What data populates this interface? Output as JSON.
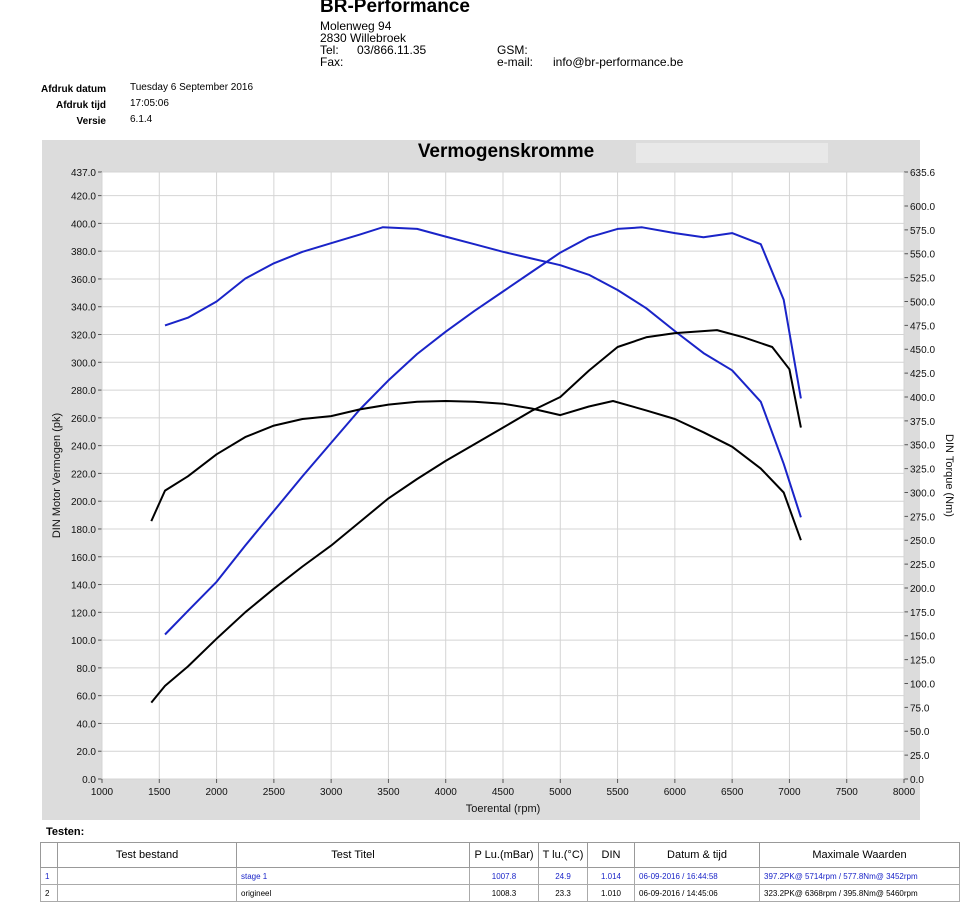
{
  "header": {
    "company": "BR-Performance",
    "street": "Molenweg 94",
    "city": "2830 Willebroek",
    "tel_label": "Tel:",
    "tel": "03/866.11.35",
    "fax_label": "Fax:",
    "gsm_label": "GSM:",
    "email_label": "e-mail:",
    "email": "info@br-performance.be"
  },
  "meta": {
    "date_label": "Afdruk datum",
    "date": "Tuesday 6 September 2016",
    "time_label": "Afdruk tijd",
    "time": "17:05:06",
    "version_label": "Versie",
    "version": "6.1.4"
  },
  "chart_data": {
    "type": "line",
    "title": "Vermogenskromme",
    "xlabel": "Toerental (rpm)",
    "ylabel": "DIN Motor Vermogen (pk)",
    "y2label": "DIN Torque (Nm)",
    "xlim": [
      1000,
      8000
    ],
    "ylim": [
      0,
      437
    ],
    "y2lim": [
      0,
      635.6
    ],
    "x_ticks": [
      1000,
      1500,
      2000,
      2500,
      3000,
      3500,
      4000,
      4500,
      5000,
      5500,
      6000,
      6500,
      7000,
      7500,
      8000
    ],
    "y_ticks": [
      "0.0",
      "20.0",
      "40.0",
      "60.0",
      "80.0",
      "100.0",
      "120.0",
      "140.0",
      "160.0",
      "180.0",
      "200.0",
      "220.0",
      "240.0",
      "260.0",
      "280.0",
      "300.0",
      "320.0",
      "340.0",
      "360.0",
      "380.0",
      "400.0",
      "420.0",
      "437.0"
    ],
    "y2_ticks": [
      "0.0",
      "25.0",
      "50.0",
      "75.0",
      "100.0",
      "125.0",
      "150.0",
      "175.0",
      "200.0",
      "225.0",
      "250.0",
      "275.0",
      "300.0",
      "325.0",
      "350.0",
      "375.0",
      "400.0",
      "425.0",
      "450.0",
      "475.0",
      "500.0",
      "525.0",
      "550.0",
      "575.0",
      "600.0",
      "635.6"
    ],
    "grid": true,
    "series": [
      {
        "color": "#1a24c8",
        "axis": "left",
        "x": [
          1550,
          1750,
          2000,
          2250,
          2500,
          2750,
          3000,
          3250,
          3500,
          3750,
          4000,
          4250,
          4500,
          4750,
          5000,
          5250,
          5500,
          5714,
          6000,
          6250,
          6500,
          6750,
          6950,
          7100
        ],
        "y": [
          104,
          121,
          142,
          168,
          193,
          218,
          242,
          266,
          287,
          306,
          322,
          337,
          351,
          365,
          379,
          390,
          396,
          397.2,
          393,
          390,
          393,
          385,
          345,
          274
        ]
      },
      {
        "color": "#1a24c8",
        "axis": "right",
        "x": [
          1550,
          1750,
          2000,
          2250,
          2500,
          2750,
          3000,
          3250,
          3452,
          3750,
          4000,
          4250,
          4500,
          4750,
          5000,
          5250,
          5500,
          5750,
          6000,
          6250,
          6500,
          6750,
          6950,
          7100
        ],
        "y": [
          475,
          483,
          500,
          524,
          540,
          552,
          561,
          570,
          577.8,
          576,
          568,
          560,
          552,
          545,
          538,
          528,
          512,
          493,
          469,
          446,
          428,
          395,
          330,
          274
        ]
      },
      {
        "color": "#000000",
        "axis": "left",
        "x": [
          1430,
          1550,
          1750,
          2000,
          2250,
          2500,
          2750,
          3000,
          3250,
          3500,
          3750,
          4000,
          4250,
          4500,
          4750,
          5000,
          5250,
          5500,
          5750,
          6000,
          6368,
          6600,
          6850,
          7000,
          7100
        ],
        "y": [
          55,
          67,
          81,
          101,
          120,
          137,
          153,
          168,
          185,
          202,
          216,
          229,
          241,
          253,
          265,
          275,
          294,
          311,
          318,
          321,
          323.2,
          318,
          311,
          295,
          253
        ]
      },
      {
        "color": "#000000",
        "axis": "right",
        "x": [
          1430,
          1550,
          1750,
          2000,
          2250,
          2500,
          2750,
          3000,
          3250,
          3500,
          3750,
          4000,
          4250,
          4500,
          4750,
          5000,
          5250,
          5460,
          5750,
          6000,
          6250,
          6500,
          6750,
          6950,
          7100
        ],
        "y": [
          270,
          302,
          317,
          340,
          358,
          370,
          377,
          380,
          387,
          392,
          395,
          395.8,
          395,
          393,
          388,
          381,
          390,
          395.8,
          386,
          377,
          363,
          348,
          325,
          300,
          250
        ]
      }
    ]
  },
  "tests": {
    "section_label": "Testen:",
    "columns": [
      "Test bestand",
      "Test Titel",
      "P Lu.(mBar)",
      "T lu.(°C)",
      "DIN",
      "Datum & tijd",
      "Maximale Waarden"
    ],
    "rows": [
      {
        "nr": "1",
        "file": "",
        "title": "stage 1",
        "p": "1007.8",
        "t": "24.9",
        "din": "1.014",
        "datetime": "06-09-2016 / 16:44:58",
        "max": "397.2PK@ 5714rpm / 577.8Nm@ 3452rpm",
        "color": "#1a24c8"
      },
      {
        "nr": "2",
        "file": "",
        "title": "origineel",
        "p": "1008.3",
        "t": "23.3",
        "din": "1.010",
        "datetime": "06-09-2016 / 14:45:06",
        "max": "323.2PK@ 6368rpm / 395.8Nm@ 5460rpm",
        "color": "#000000"
      }
    ]
  }
}
